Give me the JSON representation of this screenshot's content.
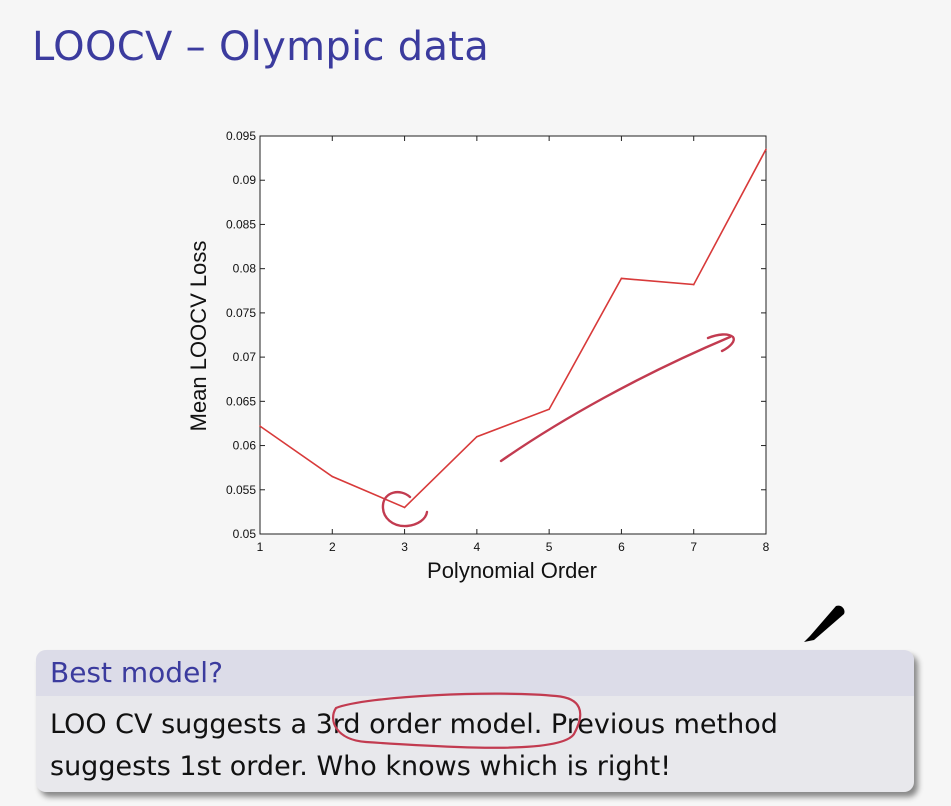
{
  "slide": {
    "title": "LOOCV – Olympic data"
  },
  "block": {
    "header": "Best model?",
    "line1_pre": "LOO CV suggests a ",
    "line1_highlight": "3rd order model.",
    "line1_post": " Previous method",
    "line2": "suggests 1st order. Who knows which is right!"
  },
  "annotation": {
    "color": "#c23b50"
  },
  "chart_data": {
    "type": "line",
    "xlabel": "Polynomial Order",
    "ylabel": "Mean LOOCV Loss",
    "x": [
      1,
      2,
      3,
      4,
      5,
      6,
      7,
      8
    ],
    "series": [
      {
        "values": [
          0.0622,
          0.0565,
          0.053,
          0.061,
          0.0641,
          0.0789,
          0.0782,
          0.0935
        ],
        "color": "#d83a3a"
      }
    ],
    "xlim": [
      1,
      8
    ],
    "ylim": [
      0.05,
      0.095
    ],
    "xticks": [
      "1",
      "2",
      "3",
      "4",
      "5",
      "6",
      "7",
      "8"
    ],
    "yticks": [
      "0.05",
      "0.055",
      "0.06",
      "0.065",
      "0.07",
      "0.075",
      "0.08",
      "0.085",
      "0.09",
      "0.095"
    ],
    "grid": false
  }
}
